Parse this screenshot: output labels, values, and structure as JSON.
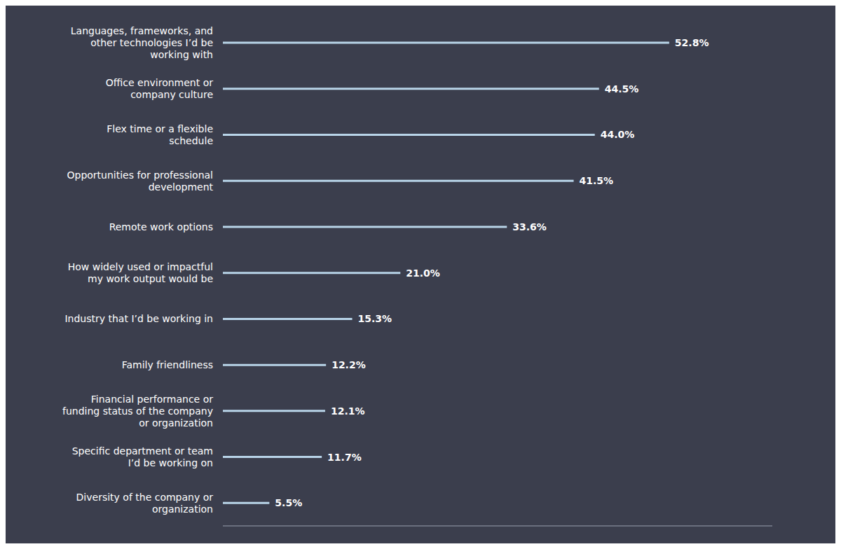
{
  "chart_data": {
    "type": "bar",
    "orientation": "horizontal",
    "categories": [
      "Languages, frameworks, and\nother technologies I’d be\nworking with",
      "Office environment or\ncompany culture",
      "Flex time or a flexible\nschedule",
      "Opportunities for professional\ndevelopment",
      "Remote work options",
      "How widely used or impactful\nmy work output would be",
      "Industry that I’d be working in",
      "Family friendliness",
      "Financial performance or\nfunding status of the company\nor organization",
      "Specific department or team\nI’d be working on",
      "Diversity of the company or\norganization"
    ],
    "values": [
      52.8,
      44.5,
      44.0,
      41.5,
      33.6,
      21.0,
      15.3,
      12.2,
      12.1,
      11.7,
      5.5
    ],
    "value_labels": [
      "52.8%",
      "44.5%",
      "44.0%",
      "41.5%",
      "33.6%",
      "21.0%",
      "15.3%",
      "12.2%",
      "12.1%",
      "11.7%",
      "5.5%"
    ],
    "data_labels": true,
    "color": "#b8d4e8",
    "xlim": [
      0,
      65
    ],
    "tick_labels": "y"
  }
}
